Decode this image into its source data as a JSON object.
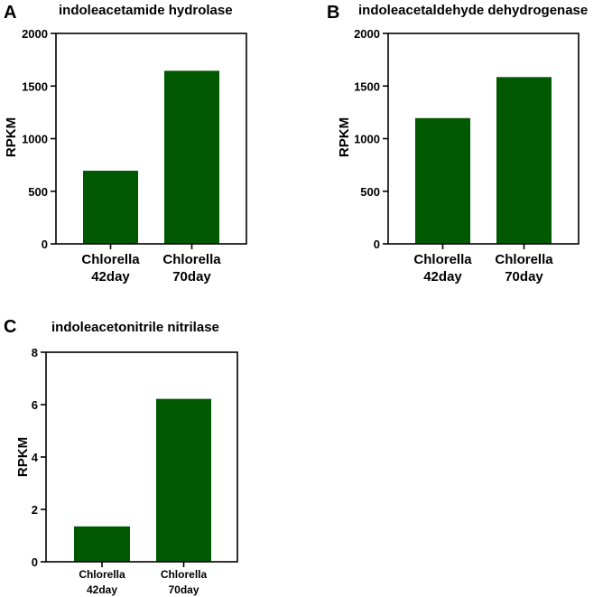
{
  "chart_data": [
    {
      "panel": "A",
      "type": "bar",
      "title": "indoleacetamide hydrolase",
      "ylabel": "RPKM",
      "xlabel": "",
      "ylim": [
        0,
        2000
      ],
      "yticks": [
        0,
        500,
        1000,
        1500,
        2000
      ],
      "categories": [
        [
          "Chlorella",
          "42day"
        ],
        [
          "Chlorella",
          "70day"
        ]
      ],
      "values": [
        695,
        1645
      ],
      "bar_color": "#005900"
    },
    {
      "panel": "B",
      "type": "bar",
      "title": "indoleacetaldehyde dehydrogenase",
      "ylabel": "RPKM",
      "xlabel": "",
      "ylim": [
        0,
        2000
      ],
      "yticks": [
        0,
        500,
        1000,
        1500,
        2000
      ],
      "categories": [
        [
          "Chlorella",
          "42day"
        ],
        [
          "Chlorella",
          "70day"
        ]
      ],
      "values": [
        1195,
        1585
      ],
      "bar_color": "#005900"
    },
    {
      "panel": "C",
      "type": "bar",
      "title": "indoleacetonitrile nitrilase",
      "ylabel": "RPKM",
      "xlabel": "",
      "ylim": [
        0,
        8
      ],
      "yticks": [
        0,
        2,
        4,
        6,
        8
      ],
      "categories": [
        [
          "Chlorella",
          "42day"
        ],
        [
          "Chlorella",
          "70day"
        ]
      ],
      "values": [
        1.35,
        6.22
      ],
      "bar_color": "#005900"
    }
  ]
}
